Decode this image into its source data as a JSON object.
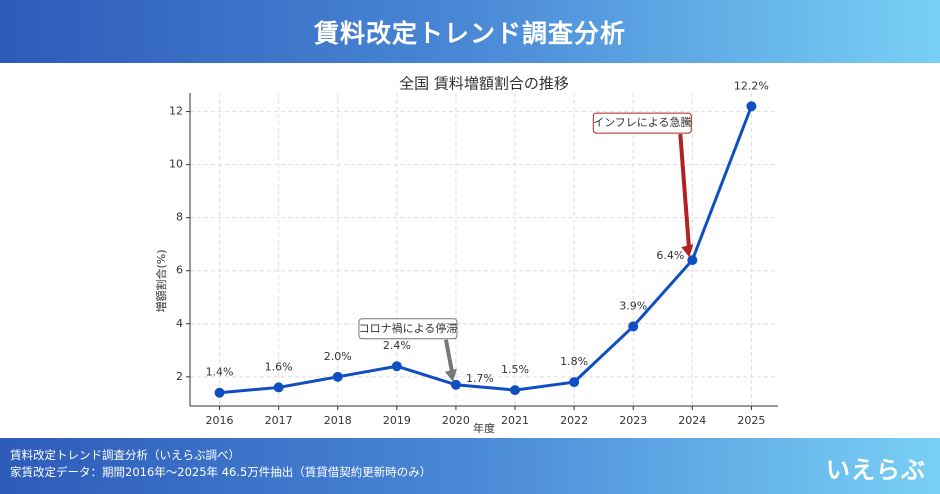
{
  "header": {
    "title": "賃料改定トレンド調査分析"
  },
  "chart_data": {
    "type": "line",
    "title": "全国 賃料増額割合の推移",
    "x_label": "年度",
    "y_label": "増額割合(%)",
    "x": [
      2016,
      2017,
      2018,
      2019,
      2020,
      2021,
      2022,
      2023,
      2024,
      2025
    ],
    "values": [
      1.4,
      1.6,
      2.0,
      2.4,
      1.7,
      1.5,
      1.8,
      3.9,
      6.4,
      12.2
    ],
    "value_labels": [
      "1.4%",
      "1.6%",
      "2.0%",
      "2.4%",
      "1.7%",
      "1.5%",
      "1.8%",
      "3.9%",
      "6.4%",
      "12.2%"
    ],
    "label_colors": [
      "#888888",
      "#888888",
      "#888888",
      "#888888",
      "#888888",
      "#888888",
      "#888888",
      "#d62728",
      "#d62728",
      "#d62728"
    ],
    "color": "#0f4fc2",
    "xlim": [
      2015.5,
      2025.45
    ],
    "ylim": [
      0.9,
      12.7
    ],
    "xticks": [
      2016,
      2017,
      2018,
      2019,
      2020,
      2021,
      2022,
      2023,
      2024,
      2025
    ],
    "yticks": [
      2,
      4,
      6,
      8,
      10,
      12
    ],
    "grid": true,
    "annotations": [
      {
        "text": "コロナ禍による停滞",
        "x": 2020,
        "y": 1.7,
        "color": "#777777",
        "text_color": "#333333"
      },
      {
        "text": "インフレによる急騰",
        "x": 2024,
        "y": 6.4,
        "color": "#b22222",
        "text_color": "#d62728"
      }
    ]
  },
  "footer": {
    "line1": "賃料改定トレンド調査分析（いえらぶ調べ）",
    "line2": "家賃改定データ：期間2016年〜2025年 46.5万件抽出（賃貸借契約更新時のみ）",
    "logo": "いえらぶ"
  }
}
